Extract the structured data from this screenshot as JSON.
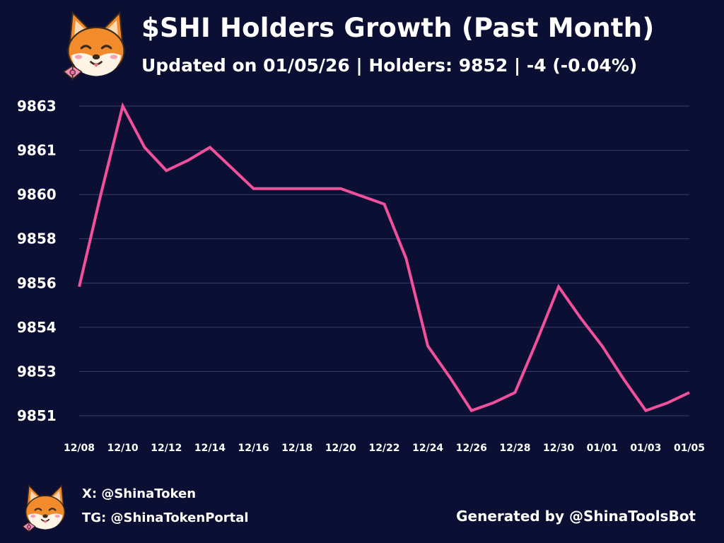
{
  "header": {
    "title": "$SHI Holders Growth (Past Month)",
    "subtitle": "Updated on 01/05/26 | Holders: 9852 | -4 (-0.04%)",
    "logo_icon": "shiba-inu-mascot-icon"
  },
  "footer": {
    "x_handle": "X: @ShinaToken",
    "tg_handle": "TG: @ShinaTokenPortal",
    "generated_by": "Generated by @ShinaToolsBot",
    "logo_icon": "shiba-inu-mascot-icon"
  },
  "colors": {
    "background": "#0b0f33",
    "line": "#f0509c",
    "grid": "#3a3f6a",
    "text": "#ffffff"
  },
  "chart_data": {
    "type": "line",
    "title": "",
    "xlabel": "",
    "ylabel": "",
    "x": [
      "12/08",
      "12/09",
      "12/10",
      "12/11",
      "12/12",
      "12/13",
      "12/14",
      "12/15",
      "12/16",
      "12/17",
      "12/18",
      "12/19",
      "12/20",
      "12/21",
      "12/22",
      "12/23",
      "12/24",
      "12/25",
      "12/26",
      "12/27",
      "12/28",
      "12/29",
      "12/30",
      "12/31",
      "01/01",
      "01/02",
      "01/03",
      "01/04",
      "01/05"
    ],
    "x_tick_labels": [
      "12/08",
      "12/10",
      "12/12",
      "12/14",
      "12/16",
      "12/18",
      "12/20",
      "12/22",
      "12/24",
      "12/26",
      "12/28",
      "12/30",
      "01/01",
      "01/03",
      "01/05"
    ],
    "y_tick_labels": [
      "9851",
      "9853",
      "9854",
      "9856",
      "9858",
      "9860",
      "9861",
      "9863"
    ],
    "ylim": [
      9851,
      9863
    ],
    "grid": true,
    "series": [
      {
        "values": [
          9856,
          9859.6,
          9863,
          9861.4,
          9860.5,
          9860.9,
          9861.4,
          9860.6,
          9859.8,
          9859.8,
          9859.8,
          9859.8,
          9859.8,
          9859.5,
          9859.2,
          9857.1,
          9853.7,
          9852.5,
          9851.2,
          9851.5,
          9851.9,
          9853.9,
          9856,
          9854.8,
          9853.7,
          9852.4,
          9851.2,
          9851.5,
          9851.9
        ]
      }
    ]
  }
}
